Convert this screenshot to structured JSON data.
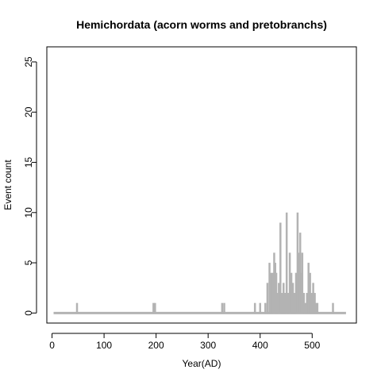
{
  "chart_data": {
    "type": "bar",
    "title": "Hemichordata (acorn worms and pretobranchs)",
    "xlabel": "Year(AD)",
    "ylabel": "Event count",
    "xlim": [
      -10,
      585
    ],
    "ylim": [
      -1,
      26.5
    ],
    "x_ticks": [
      0,
      100,
      200,
      300,
      400,
      500
    ],
    "y_ticks": [
      0,
      5,
      10,
      15,
      20,
      25
    ],
    "baseline": {
      "from": 3,
      "to": 565
    },
    "series": [
      {
        "color": "#b3b3b3",
        "x": [
          48,
          195,
          198,
          327,
          331,
          390,
          400,
          410,
          414,
          418,
          421,
          424,
          427,
          429,
          431,
          433,
          436,
          439,
          442,
          445,
          448,
          451,
          454,
          457,
          460,
          463,
          466,
          469,
          472,
          475,
          477,
          479,
          481,
          484,
          487,
          490,
          493,
          496,
          499,
          502,
          505,
          507,
          510,
          540
        ],
        "values": [
          1,
          1,
          1,
          1,
          1,
          1,
          1,
          1,
          3,
          5,
          4,
          4,
          6,
          5,
          4,
          2,
          3,
          9,
          2,
          3,
          2,
          10,
          2,
          6,
          4,
          3,
          2,
          4,
          10,
          6,
          8,
          4,
          6,
          2,
          1,
          2,
          5,
          4,
          2,
          3,
          2,
          1,
          1,
          1
        ]
      }
    ]
  }
}
